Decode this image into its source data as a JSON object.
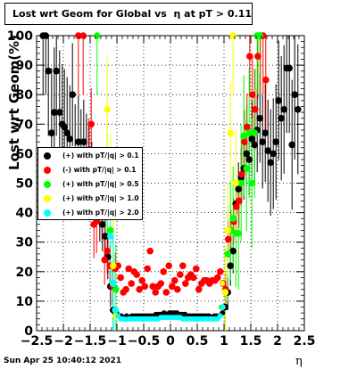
{
  "title_prefix": "Lost wrt Geom for Global vs",
  "title_eta": "η",
  "title_suffix": "at pT > 0.11",
  "timestamp": "Sun Apr 25 10:40:12 2021",
  "chart_data": {
    "type": "scatter",
    "xlabel": "η",
    "ylabel": "Lost wrt Geom(%)",
    "xlim": [
      -2.5,
      2.5
    ],
    "ylim": [
      0,
      100
    ],
    "x_ticks": [
      "−2.5",
      "−2",
      "−1.5",
      "−1",
      "−0.5",
      "0",
      "0.5",
      "1",
      "1.5",
      "2",
      "2.5"
    ],
    "y_ticks": [
      "0",
      "10",
      "20",
      "30",
      "40",
      "50",
      "60",
      "70",
      "80",
      "90",
      "100"
    ],
    "grid": true,
    "legend_position": "left-middle",
    "series": [
      {
        "name": "(+) with pT/|q| > 0.1",
        "color": "#000000",
        "points": [
          [
            -2.38,
            100
          ],
          [
            -2.33,
            100
          ],
          [
            -2.28,
            88
          ],
          [
            -2.22,
            67
          ],
          [
            -2.17,
            74
          ],
          [
            -2.13,
            88
          ],
          [
            -2.07,
            74
          ],
          [
            -2.02,
            70
          ],
          [
            -1.98,
            69
          ],
          [
            -1.93,
            67
          ],
          [
            -1.88,
            65
          ],
          [
            -1.83,
            80
          ],
          [
            -1.78,
            60
          ],
          [
            -1.72,
            64
          ],
          [
            -1.67,
            60
          ],
          [
            -1.62,
            64
          ],
          [
            -1.57,
            60
          ],
          [
            -1.52,
            57
          ],
          [
            -1.47,
            52
          ],
          [
            -1.42,
            50
          ],
          [
            -1.37,
            48
          ],
          [
            -1.32,
            40
          ],
          [
            -1.27,
            36
          ],
          [
            -1.22,
            32
          ],
          [
            -1.17,
            25
          ],
          [
            -1.12,
            15
          ],
          [
            -1.07,
            7
          ],
          [
            -1.02,
            6
          ],
          [
            -0.97,
            5
          ],
          [
            -0.92,
            5
          ],
          [
            -0.87,
            4.5
          ],
          [
            -0.82,
            5
          ],
          [
            -0.77,
            4.5
          ],
          [
            -0.72,
            5
          ],
          [
            -0.67,
            5
          ],
          [
            -0.62,
            5
          ],
          [
            -0.57,
            5
          ],
          [
            -0.52,
            5
          ],
          [
            -0.47,
            5
          ],
          [
            -0.42,
            5
          ],
          [
            -0.37,
            5
          ],
          [
            -0.32,
            5
          ],
          [
            -0.27,
            5.5
          ],
          [
            -0.22,
            5.5
          ],
          [
            -0.17,
            5.5
          ],
          [
            -0.12,
            6
          ],
          [
            -0.07,
            5.5
          ],
          [
            -0.02,
            6
          ],
          [
            0.02,
            6
          ],
          [
            0.07,
            6
          ],
          [
            0.12,
            6
          ],
          [
            0.17,
            5.5
          ],
          [
            0.22,
            5.5
          ],
          [
            0.27,
            5.5
          ],
          [
            0.32,
            5
          ],
          [
            0.37,
            5
          ],
          [
            0.42,
            5
          ],
          [
            0.47,
            5
          ],
          [
            0.52,
            5
          ],
          [
            0.57,
            5
          ],
          [
            0.62,
            5
          ],
          [
            0.67,
            5
          ],
          [
            0.72,
            5
          ],
          [
            0.77,
            4.5
          ],
          [
            0.82,
            5
          ],
          [
            0.87,
            5
          ],
          [
            0.92,
            5
          ],
          [
            0.97,
            6
          ],
          [
            1.02,
            8
          ],
          [
            1.07,
            13
          ],
          [
            1.12,
            22
          ],
          [
            1.17,
            27
          ],
          [
            1.22,
            43
          ],
          [
            1.27,
            48
          ],
          [
            1.32,
            52
          ],
          [
            1.37,
            55
          ],
          [
            1.42,
            60
          ],
          [
            1.47,
            58
          ],
          [
            1.52,
            65
          ],
          [
            1.57,
            63
          ],
          [
            1.62,
            68
          ],
          [
            1.67,
            72
          ],
          [
            1.72,
            64
          ],
          [
            1.77,
            67
          ],
          [
            1.82,
            61
          ],
          [
            1.87,
            57
          ],
          [
            1.92,
            60
          ],
          [
            1.97,
            64
          ],
          [
            2.02,
            78
          ],
          [
            2.07,
            72
          ],
          [
            2.12,
            75
          ],
          [
            2.17,
            89
          ],
          [
            2.22,
            89
          ],
          [
            2.27,
            63
          ],
          [
            2.32,
            80
          ],
          [
            2.38,
            75
          ]
        ]
      },
      {
        "name": "(-) with pT/|q| > 0.1",
        "color": "#ff0000",
        "points": [
          [
            -1.72,
            100
          ],
          [
            -1.63,
            100
          ],
          [
            -1.53,
            59
          ],
          [
            -1.48,
            70
          ],
          [
            -1.43,
            36
          ],
          [
            -1.38,
            37
          ],
          [
            -1.33,
            46
          ],
          [
            -1.28,
            40
          ],
          [
            -1.23,
            24
          ],
          [
            -1.18,
            27
          ],
          [
            -1.13,
            22
          ],
          [
            -1.08,
            15
          ],
          [
            -1.03,
            21
          ],
          [
            -0.98,
            22
          ],
          [
            -0.93,
            18
          ],
          [
            -0.88,
            13
          ],
          [
            -0.83,
            14
          ],
          [
            -0.78,
            21
          ],
          [
            -0.73,
            16
          ],
          [
            -0.68,
            20
          ],
          [
            -0.63,
            19
          ],
          [
            -0.58,
            14
          ],
          [
            -0.53,
            17
          ],
          [
            -0.48,
            15
          ],
          [
            -0.43,
            21
          ],
          [
            -0.38,
            27
          ],
          [
            -0.33,
            15
          ],
          [
            -0.28,
            13
          ],
          [
            -0.23,
            15
          ],
          [
            -0.18,
            16
          ],
          [
            -0.13,
            20
          ],
          [
            -0.08,
            13
          ],
          [
            -0.03,
            22
          ],
          [
            0.03,
            15
          ],
          [
            0.08,
            17
          ],
          [
            0.13,
            14
          ],
          [
            0.18,
            19
          ],
          [
            0.23,
            22
          ],
          [
            0.28,
            16
          ],
          [
            0.33,
            18
          ],
          [
            0.38,
            19
          ],
          [
            0.43,
            18
          ],
          [
            0.48,
            21
          ],
          [
            0.53,
            14
          ],
          [
            0.58,
            16
          ],
          [
            0.63,
            17
          ],
          [
            0.68,
            17
          ],
          [
            0.73,
            16
          ],
          [
            0.78,
            17
          ],
          [
            0.83,
            17
          ],
          [
            0.88,
            18
          ],
          [
            0.93,
            20
          ],
          [
            0.98,
            16
          ],
          [
            1.03,
            14
          ],
          [
            1.08,
            31
          ],
          [
            1.13,
            34
          ],
          [
            1.18,
            37
          ],
          [
            1.23,
            42
          ],
          [
            1.28,
            44
          ],
          [
            1.33,
            53
          ],
          [
            1.38,
            64
          ],
          [
            1.43,
            69
          ],
          [
            1.48,
            93
          ],
          [
            1.53,
            80
          ],
          [
            1.58,
            75
          ],
          [
            1.63,
            93
          ],
          [
            1.68,
            100
          ],
          [
            1.73,
            100
          ],
          [
            1.78,
            85
          ]
        ]
      },
      {
        "name": "(+) with pT/|q| > 0.5",
        "color": "#00ff00",
        "points": [
          [
            -1.37,
            100
          ],
          [
            -1.18,
            49
          ],
          [
            -1.12,
            34
          ],
          [
            -1.07,
            16
          ],
          [
            -1.02,
            14
          ],
          [
            0.95,
            8
          ],
          [
            1.02,
            13
          ],
          [
            1.07,
            26
          ],
          [
            1.12,
            34
          ],
          [
            1.17,
            38
          ],
          [
            1.22,
            33
          ],
          [
            1.27,
            33
          ],
          [
            1.32,
            50
          ],
          [
            1.37,
            66
          ],
          [
            1.42,
            55
          ],
          [
            1.47,
            67
          ],
          [
            1.52,
            50
          ],
          [
            1.57,
            67
          ],
          [
            1.62,
            100
          ],
          [
            1.67,
            100
          ]
        ]
      },
      {
        "name": "(+) with pT/|q| > 1.0",
        "color": "#ffff00",
        "points": [
          [
            -1.18,
            75
          ],
          [
            -1.12,
            50
          ],
          [
            -1.07,
            22
          ],
          [
            -1.02,
            5
          ],
          [
            0.97,
            16
          ],
          [
            1.02,
            13
          ],
          [
            1.07,
            34
          ],
          [
            1.12,
            67
          ],
          [
            1.17,
            100
          ],
          [
            1.22,
            50
          ]
        ]
      },
      {
        "name": "(+) with pT/|q| > 2.0",
        "color": "#00ffff",
        "points": [
          [
            -1.12,
            32
          ],
          [
            -1.07,
            16
          ],
          [
            -1.03,
            7
          ],
          [
            -0.98,
            5
          ],
          [
            -0.93,
            4
          ],
          [
            -0.88,
            4
          ],
          [
            -0.83,
            3.8
          ],
          [
            -0.78,
            4
          ],
          [
            -0.73,
            4
          ],
          [
            -0.68,
            4
          ],
          [
            -0.63,
            4
          ],
          [
            -0.58,
            4
          ],
          [
            -0.53,
            4
          ],
          [
            -0.48,
            4
          ],
          [
            -0.43,
            4
          ],
          [
            -0.38,
            4
          ],
          [
            -0.33,
            4
          ],
          [
            -0.28,
            4
          ],
          [
            -0.23,
            4
          ],
          [
            -0.18,
            4.5
          ],
          [
            -0.13,
            4.5
          ],
          [
            -0.08,
            4.5
          ],
          [
            -0.03,
            4.5
          ],
          [
            0.03,
            4.5
          ],
          [
            0.08,
            4.5
          ],
          [
            0.13,
            4.5
          ],
          [
            0.18,
            4.5
          ],
          [
            0.23,
            4
          ],
          [
            0.28,
            4
          ],
          [
            0.33,
            4
          ],
          [
            0.38,
            4
          ],
          [
            0.43,
            4
          ],
          [
            0.48,
            4
          ],
          [
            0.53,
            4
          ],
          [
            0.58,
            4
          ],
          [
            0.63,
            4
          ],
          [
            0.68,
            4
          ],
          [
            0.73,
            4
          ],
          [
            0.78,
            4
          ],
          [
            0.83,
            4
          ],
          [
            0.88,
            4
          ],
          [
            0.93,
            5
          ],
          [
            0.98,
            8
          ]
        ]
      }
    ]
  }
}
